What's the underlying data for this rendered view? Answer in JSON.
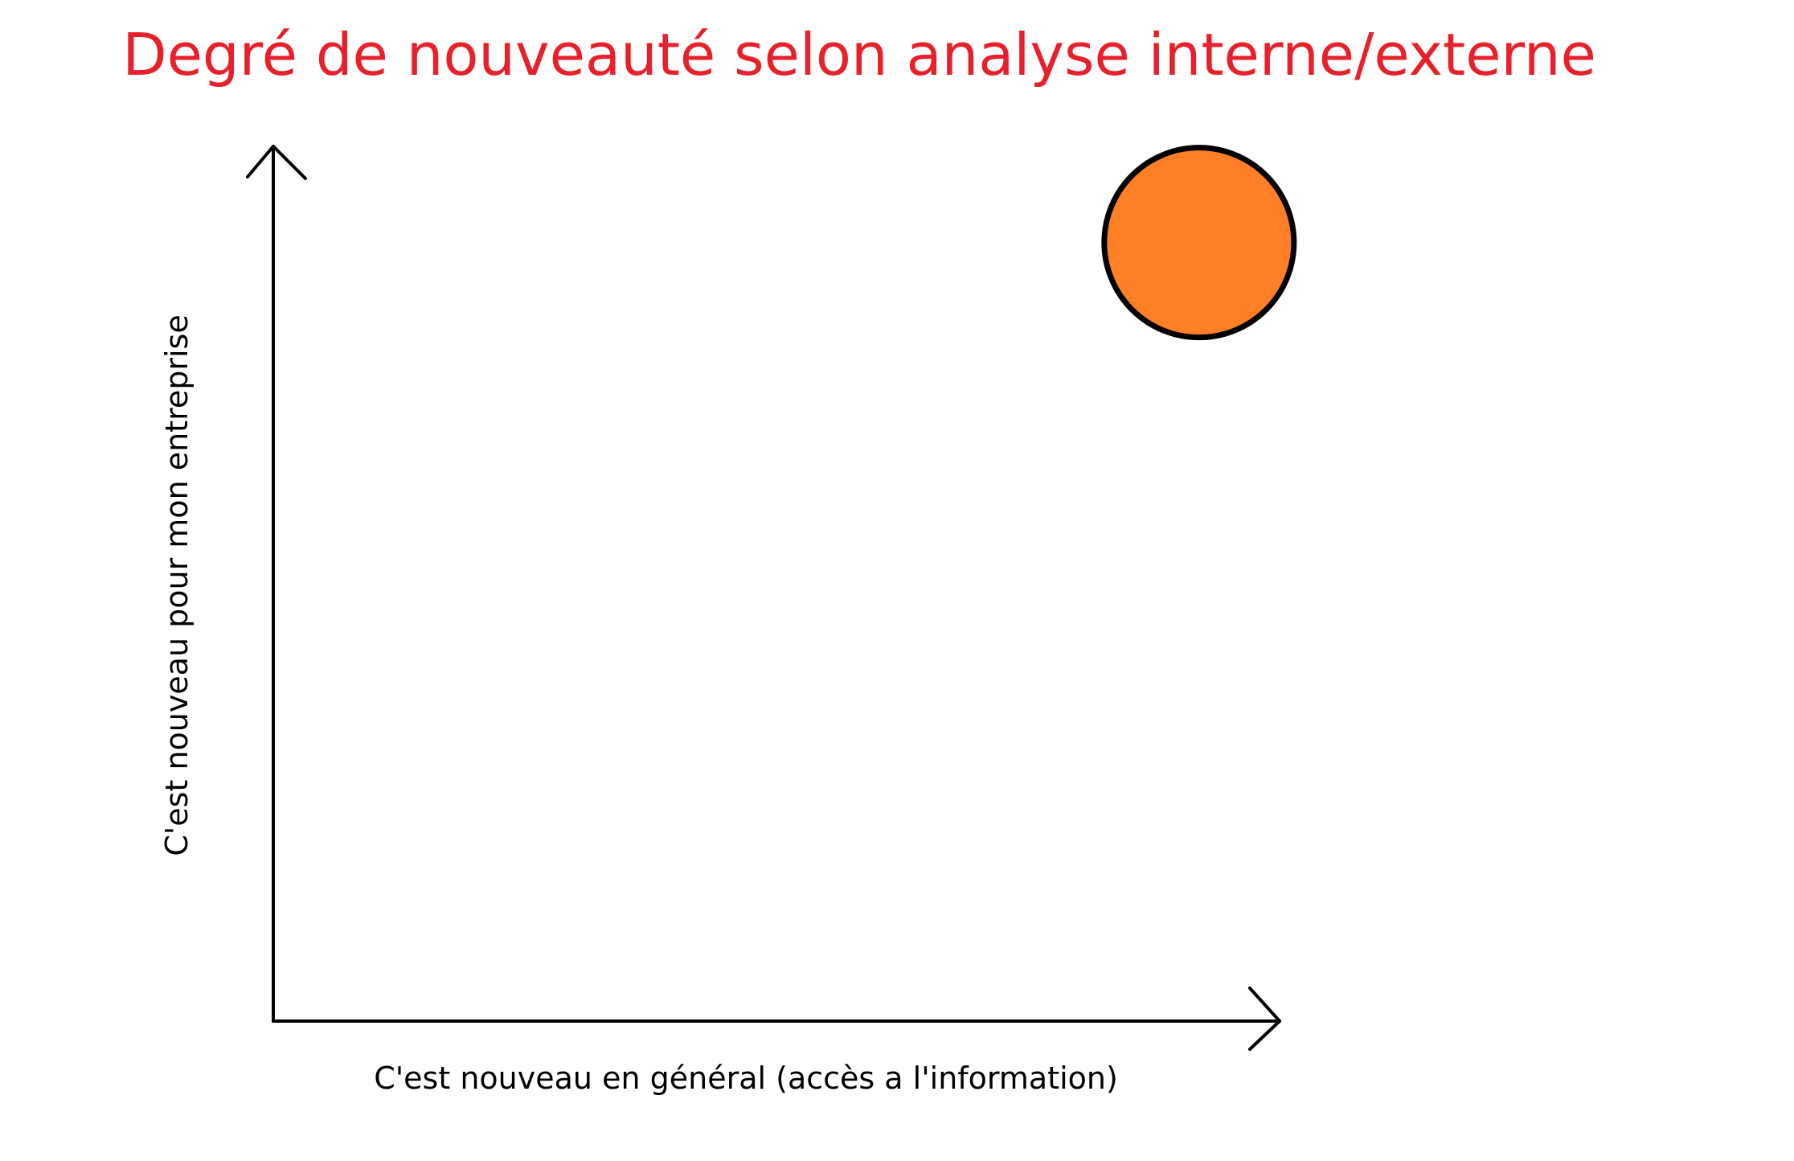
{
  "chart_data": {
    "type": "scatter",
    "title": "Degré de nouveauté selon analyse interne/externe",
    "xlabel": "C'est nouveau en général (accès a l'information)",
    "ylabel": "C'est nouveau pour mon entreprise",
    "xlim": [
      0,
      1
    ],
    "ylim": [
      0,
      1
    ],
    "grid": false,
    "points": [
      {
        "x": 0.92,
        "y": 0.89,
        "color": "#ff7f27"
      }
    ]
  },
  "colors": {
    "title": "#e8202b",
    "axis": "#000000",
    "point": "#ff7f27",
    "point_border": "#000000"
  }
}
